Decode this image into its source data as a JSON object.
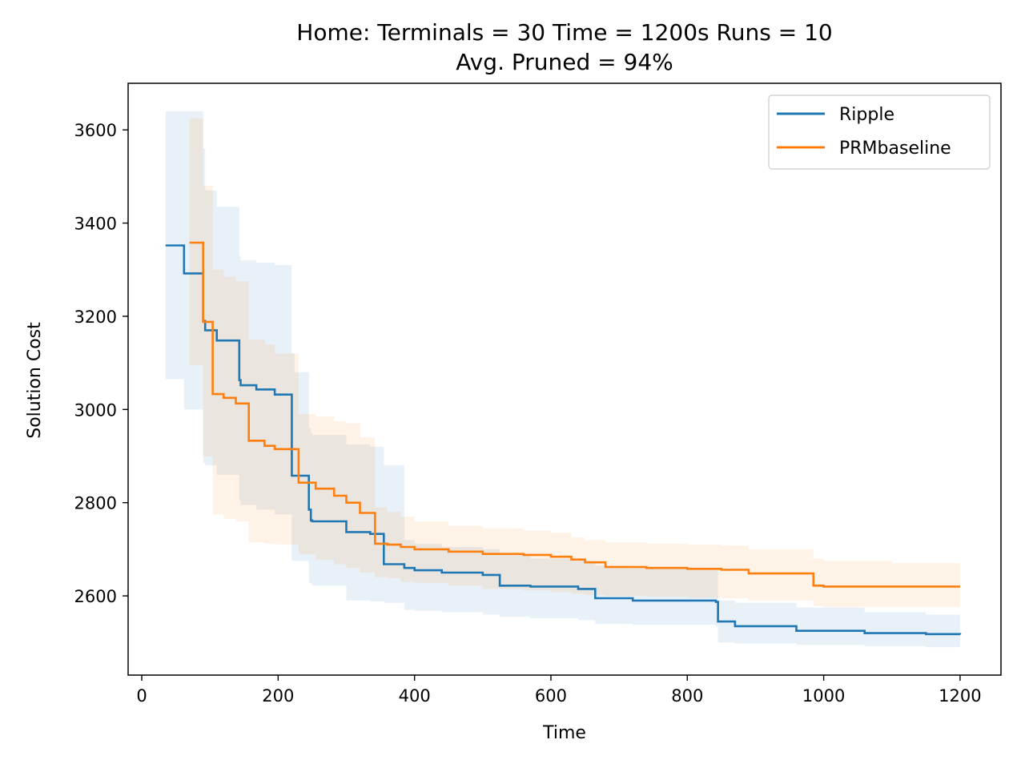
{
  "chart_data": {
    "type": "line",
    "title": "Home:  Terminals = 30  Time = 1200s  Runs = 10",
    "subtitle": "Avg. Pruned = 94%",
    "xlabel": "Time",
    "ylabel": "Solution Cost",
    "xlim": [
      -20,
      1260
    ],
    "ylim": [
      2430,
      3700
    ],
    "xticks": [
      0,
      200,
      400,
      600,
      800,
      1000,
      1200
    ],
    "yticks": [
      2600,
      2800,
      3000,
      3200,
      3400,
      3600
    ],
    "grid": false,
    "legend_position": "top-right",
    "series": [
      {
        "name": "Ripple",
        "color": "#1f77b4",
        "band_color": "#1f77b4",
        "step": true,
        "x": [
          35,
          62,
          90,
          93,
          110,
          143,
          145,
          168,
          195,
          220,
          224,
          245,
          248,
          250,
          300,
          335,
          355,
          385,
          400,
          440,
          500,
          525,
          570,
          640,
          665,
          720,
          842,
          845,
          870,
          960,
          1060,
          1150,
          1200
        ],
        "y": [
          3352,
          3292,
          3190,
          3170,
          3148,
          3063,
          3052,
          3043,
          3032,
          2858,
          2858,
          2785,
          2762,
          2760,
          2737,
          2733,
          2668,
          2660,
          2655,
          2650,
          2645,
          2622,
          2620,
          2615,
          2595,
          2590,
          2587,
          2545,
          2535,
          2525,
          2520,
          2518,
          2517
        ],
        "upper": [
          3640,
          3640,
          3560,
          3470,
          3435,
          3330,
          3320,
          3315,
          3310,
          3120,
          3080,
          2960,
          2950,
          2945,
          2925,
          2920,
          2880,
          2720,
          2712,
          2705,
          2700,
          2690,
          2680,
          2675,
          2665,
          2660,
          2655,
          2590,
          2585,
          2575,
          2565,
          2560,
          2555
        ],
        "lower": [
          3065,
          3000,
          2885,
          2880,
          2860,
          2805,
          2795,
          2785,
          2775,
          2675,
          2675,
          2628,
          2625,
          2622,
          2590,
          2588,
          2585,
          2570,
          2568,
          2565,
          2560,
          2555,
          2552,
          2548,
          2540,
          2538,
          2535,
          2500,
          2498,
          2495,
          2492,
          2490,
          2488
        ]
      },
      {
        "name": "PRMbaseline",
        "color": "#ff7f0e",
        "band_color": "#ff7f0e",
        "step": true,
        "x": [
          70,
          90,
          104,
          120,
          138,
          157,
          180,
          195,
          230,
          255,
          282,
          300,
          320,
          342,
          360,
          380,
          400,
          450,
          500,
          560,
          600,
          630,
          650,
          680,
          740,
          800,
          850,
          890,
          985,
          1000,
          1100,
          1200
        ],
        "y": [
          3358,
          3188,
          3033,
          3025,
          3013,
          2933,
          2922,
          2915,
          2843,
          2830,
          2815,
          2800,
          2778,
          2712,
          2710,
          2705,
          2700,
          2695,
          2690,
          2688,
          2684,
          2678,
          2672,
          2662,
          2660,
          2658,
          2656,
          2648,
          2622,
          2620,
          2620,
          2620
        ],
        "upper": [
          3625,
          3480,
          3300,
          3285,
          3275,
          3150,
          3140,
          3120,
          2990,
          2985,
          2975,
          2970,
          2940,
          2790,
          2780,
          2770,
          2760,
          2750,
          2745,
          2740,
          2735,
          2725,
          2720,
          2715,
          2712,
          2710,
          2708,
          2700,
          2680,
          2675,
          2670,
          2665
        ],
        "lower": [
          3095,
          2900,
          2775,
          2765,
          2760,
          2715,
          2712,
          2710,
          2690,
          2678,
          2668,
          2660,
          2650,
          2640,
          2638,
          2630,
          2628,
          2622,
          2615,
          2612,
          2608,
          2605,
          2602,
          2600,
          2598,
          2596,
          2595,
          2590,
          2578,
          2576,
          2576,
          2576
        ]
      }
    ]
  }
}
